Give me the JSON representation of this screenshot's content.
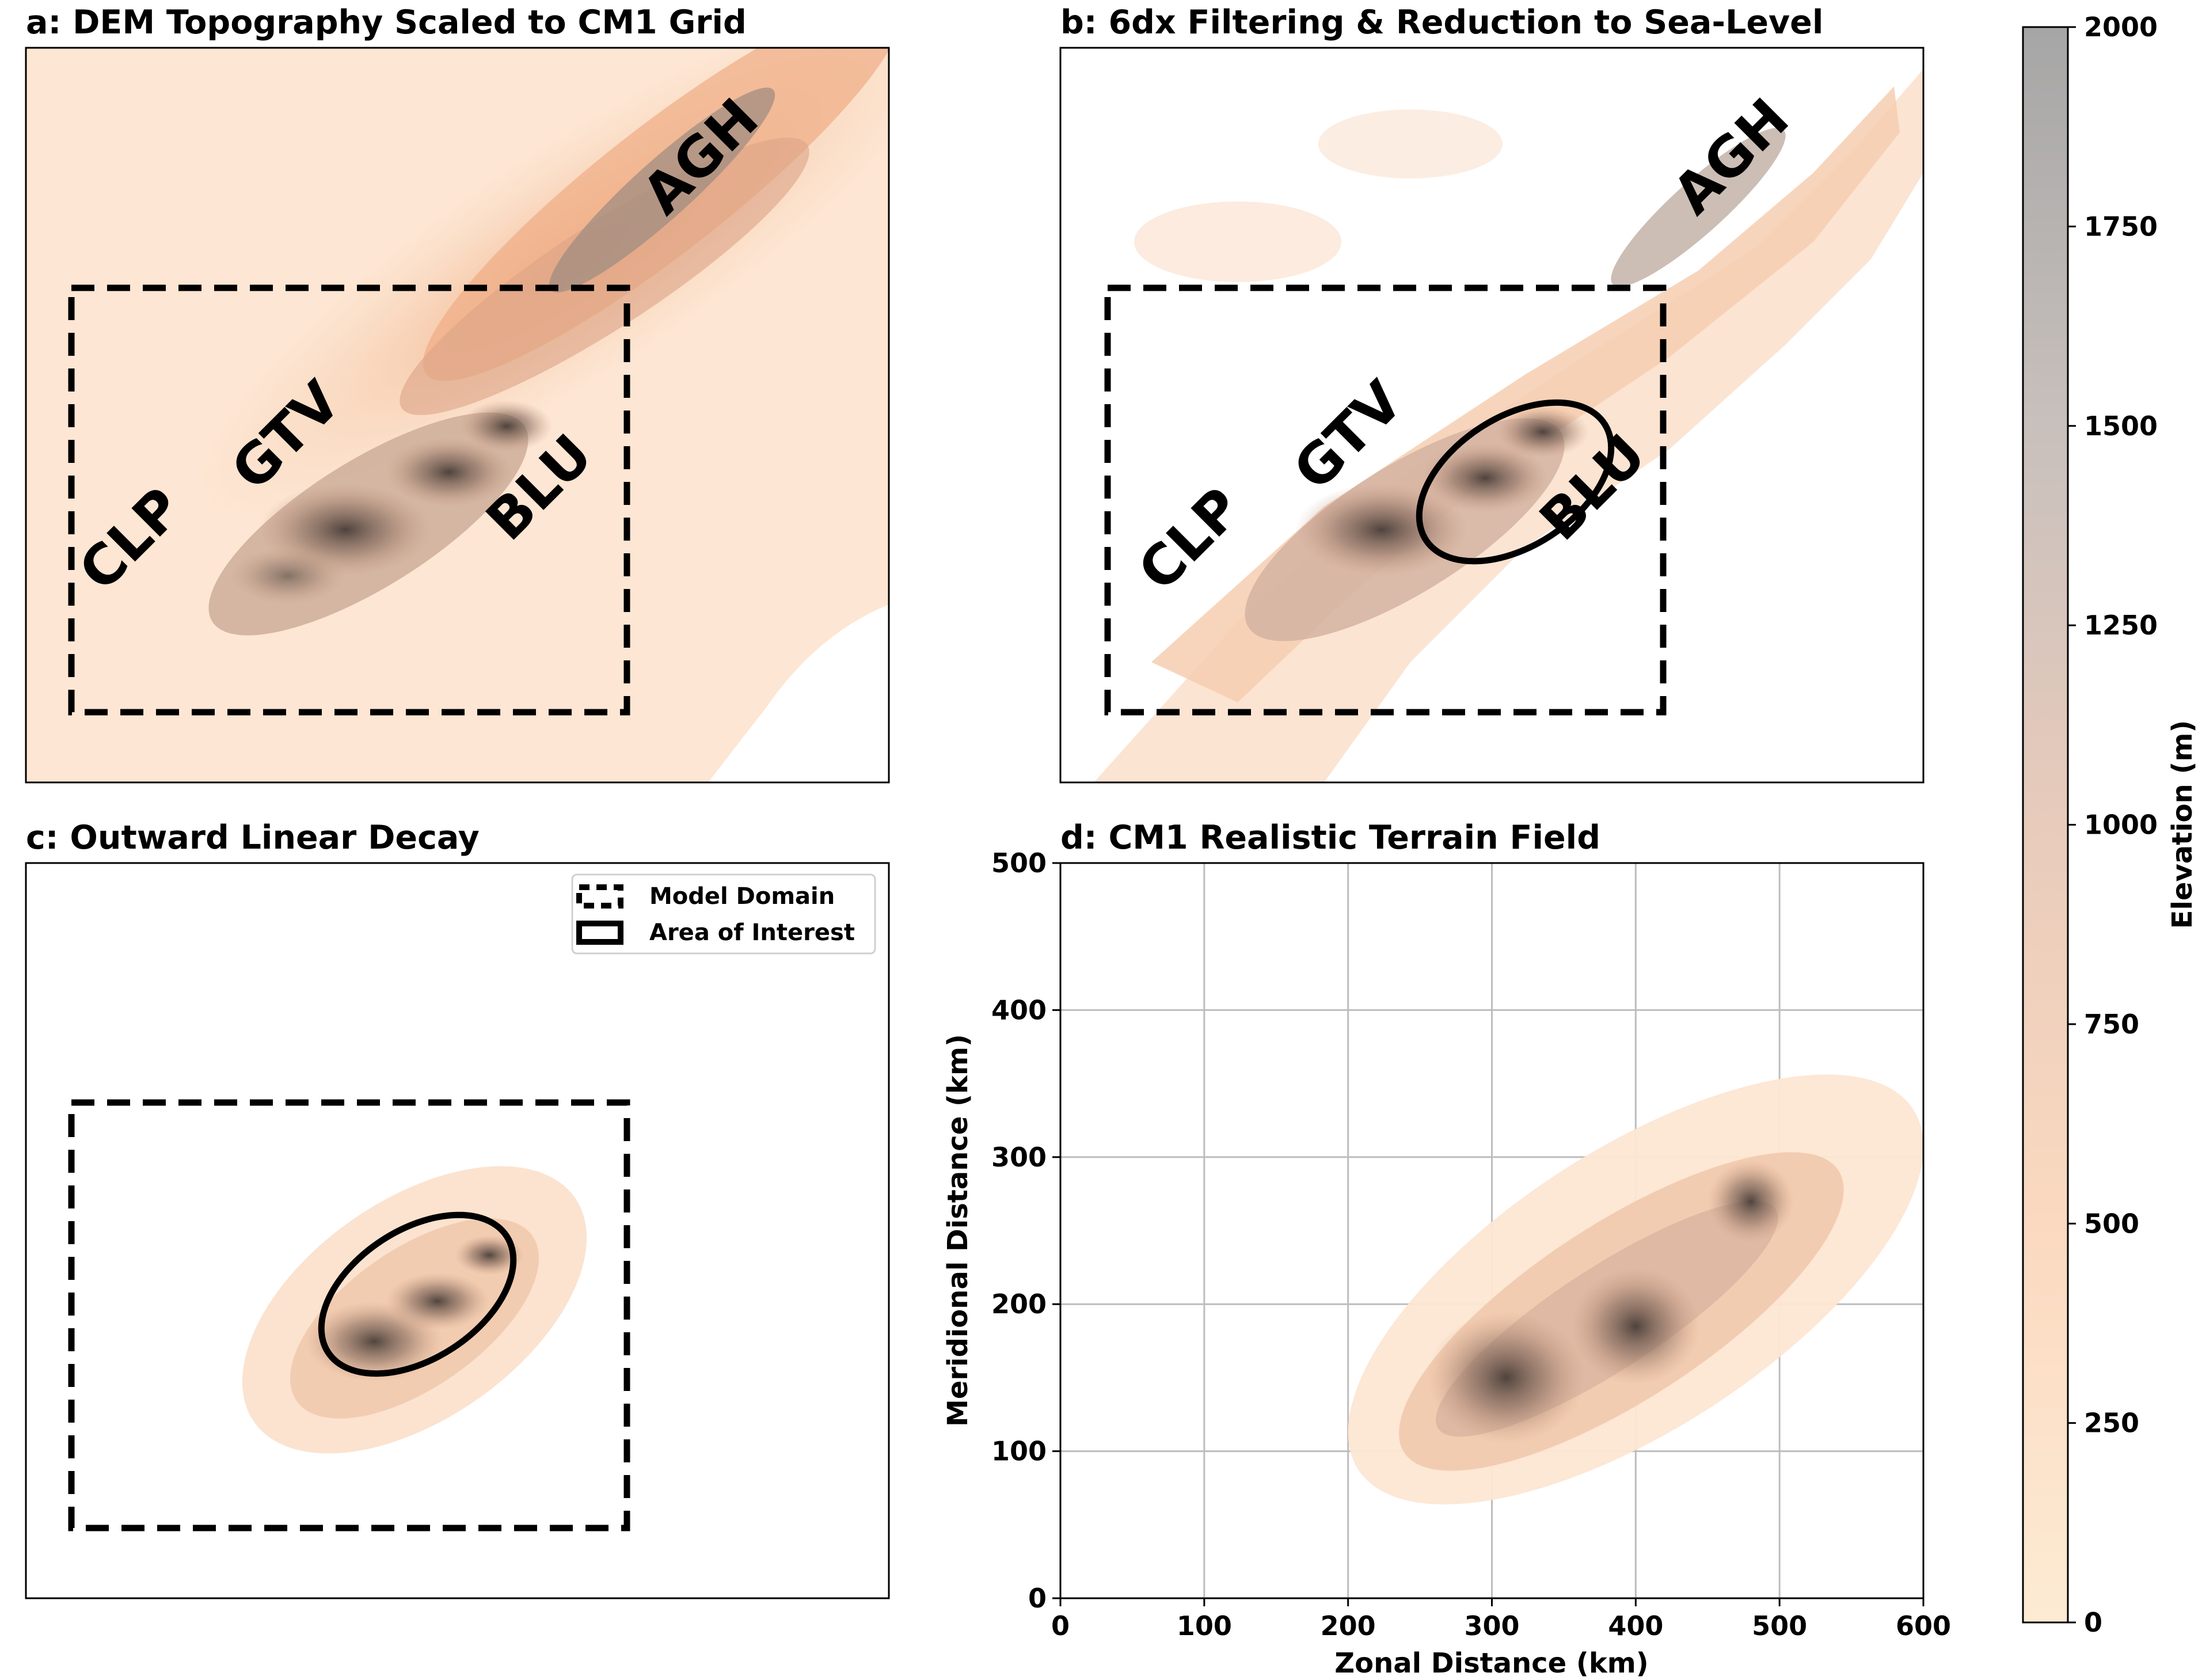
{
  "panels": {
    "a": {
      "title": "a: DEM Topography Scaled to CM1 Grid",
      "labels": {
        "agh": "AGH",
        "gtv": "GTV",
        "clp": "CLP",
        "blu": "BLU"
      }
    },
    "b": {
      "title": "b: 6dx Filtering & Reduction to Sea-Level",
      "labels": {
        "agh": "AGH",
        "gtv": "GTV",
        "clp": "CLP",
        "blu": "BLU"
      }
    },
    "c": {
      "title": "c: Outward Linear Decay",
      "legend": {
        "model_domain": "Model Domain",
        "area_of_interest": "Area of Interest"
      }
    },
    "d": {
      "title": "d: CM1 Realistic Terrain Field",
      "xlabel": "Zonal Distance (km)",
      "ylabel": "Meridional Distance (km)",
      "xticks": [
        "0",
        "100",
        "200",
        "300",
        "400",
        "500",
        "600"
      ],
      "yticks": [
        "0",
        "100",
        "200",
        "300",
        "400",
        "500"
      ]
    }
  },
  "chart_data": {
    "type": "heatmap",
    "title": "d: CM1 Realistic Terrain Field",
    "xlabel": "Zonal Distance (km)",
    "ylabel": "Meridional Distance (km)",
    "xlim": [
      0,
      600
    ],
    "ylim": [
      0,
      500
    ],
    "grid": true,
    "colorbar": {
      "label": "Elevation (m)",
      "range": [
        0,
        2000
      ],
      "ticks": [
        "0",
        "250",
        "500",
        "750",
        "1000",
        "1250",
        "1500",
        "1750",
        "2000"
      ],
      "colors": [
        "#fdebd3",
        "#fbd9c0",
        "#e8c8b8",
        "#c8c0bc",
        "#a8a8a8"
      ]
    }
  },
  "colors": {
    "terrain_low": "#fde8d4",
    "terrain_mid": "#f1b58c",
    "terrain_high": "#5a4e48",
    "outline": "#000000",
    "grid": "#bdbdbd"
  }
}
